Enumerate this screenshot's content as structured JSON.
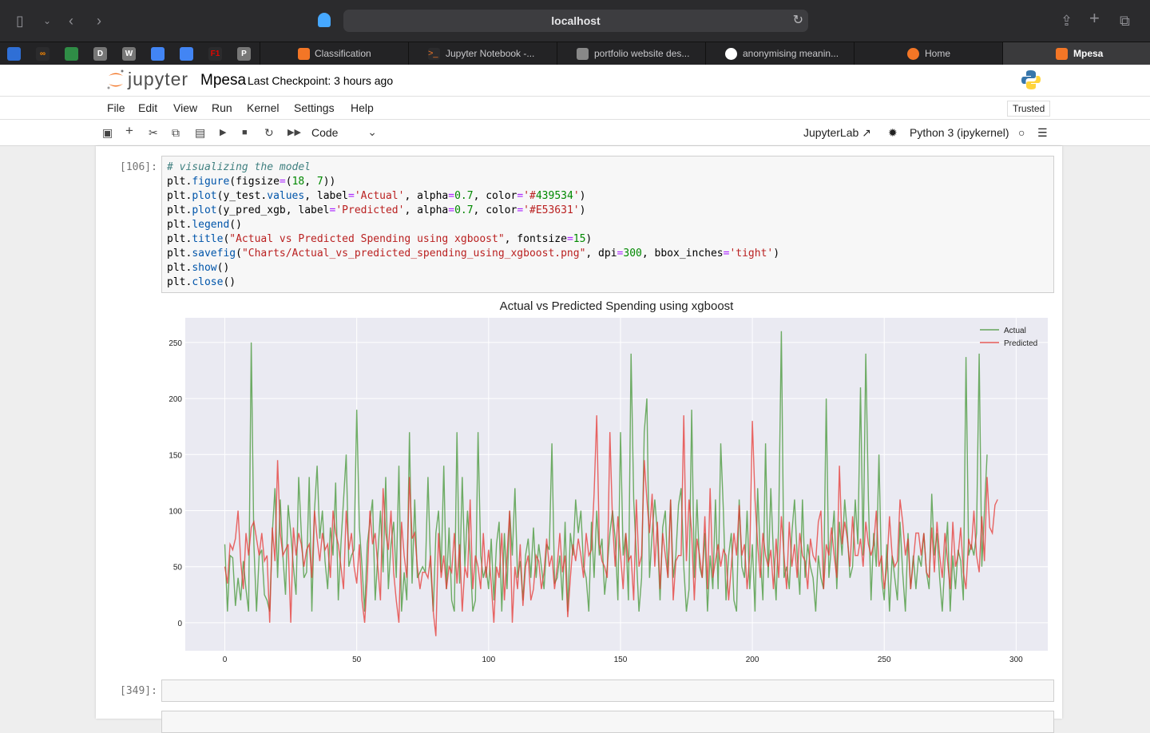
{
  "browser": {
    "url": "localhost",
    "tabs": [
      {
        "label": "Classification"
      },
      {
        "label": "Jupyter Notebook -..."
      },
      {
        "label": "portfolio website des..."
      },
      {
        "label": "anonymising meanin..."
      },
      {
        "label": "Home"
      },
      {
        "label": "Mpesa"
      }
    ],
    "pinned": [
      "D",
      "W",
      "P"
    ]
  },
  "jupyter": {
    "logo_text": "jupyter",
    "notebook_name": "Mpesa",
    "checkpoint": "Last Checkpoint: 3 hours ago",
    "menu": [
      "File",
      "Edit",
      "View",
      "Run",
      "Kernel",
      "Settings",
      "Help"
    ],
    "trusted": "Trusted",
    "cell_type": "Code",
    "jupyterlab_label": "JupyterLab",
    "kernel": "Python 3 (ipykernel)"
  },
  "cells": {
    "c1_prompt": "[106]:",
    "c2_prompt": "[349]:",
    "code_lines": [
      "# visualizing the model",
      "plt.figure(figsize=(18, 7))",
      "plt.plot(y_test.values, label='Actual', alpha=0.7, color='#439534')",
      "plt.plot(y_pred_xgb, label='Predicted', alpha=0.7, color='#E53631')",
      "plt.legend()",
      "plt.title(\"Actual vs Predicted Spending using xgboost\", fontsize=15)",
      "plt.savefig(\"Charts/Actual_vs_predicted_spending_using_xgboost.png\", dpi=300, bbox_inches='tight')",
      "plt.show()",
      "plt.close()"
    ]
  },
  "chart_data": {
    "type": "line",
    "title": "Actual vs Predicted Spending using xgboost",
    "xlim": [
      -15,
      312
    ],
    "ylim": [
      -25,
      272
    ],
    "xticks": [
      0,
      50,
      100,
      150,
      200,
      250,
      300
    ],
    "yticks": [
      0,
      50,
      100,
      150,
      200,
      250
    ],
    "grid": true,
    "legend_position": "top-right",
    "series": [
      {
        "name": "Actual",
        "color": "#439534",
        "values": [
          70,
          10,
          60,
          58,
          15,
          40,
          20,
          55,
          30,
          10,
          250,
          70,
          10,
          60,
          65,
          25,
          20,
          10,
          80,
          120,
          40,
          110,
          60,
          25,
          105,
          80,
          50,
          25,
          130,
          80,
          40,
          45,
          130,
          10,
          100,
          140,
          75,
          100,
          55,
          30,
          85,
          60,
          125,
          20,
          70,
          110,
          150,
          50,
          60,
          65,
          190,
          85,
          50,
          10,
          70,
          90,
          110,
          20,
          60,
          100,
          45,
          130,
          30,
          70,
          90,
          40,
          140,
          10,
          45,
          20,
          170,
          35,
          110,
          40,
          45,
          50,
          45,
          130,
          50,
          10,
          80,
          100,
          45,
          140,
          30,
          85,
          20,
          10,
          170,
          35,
          130,
          50,
          100,
          60,
          10,
          20,
          170,
          60,
          40,
          50,
          30,
          75,
          20,
          70,
          90,
          10,
          80,
          30,
          100,
          60,
          120,
          40,
          55,
          20,
          60,
          75,
          40,
          85,
          40,
          70,
          50,
          30,
          70,
          65,
          160,
          35,
          40,
          60,
          20,
          90,
          10,
          80,
          60,
          110,
          80,
          100,
          50,
          40,
          10,
          90,
          40,
          100,
          60,
          75,
          25,
          50,
          80,
          100,
          75,
          20,
          170,
          60,
          80,
          20,
          240,
          110,
          60,
          10,
          40,
          170,
          200,
          40,
          80,
          110,
          80,
          20,
          85,
          100,
          40,
          110,
          40,
          60,
          105,
          120,
          50,
          10,
          30,
          190,
          40,
          110,
          50,
          40,
          80,
          10,
          60,
          30,
          110,
          30,
          160,
          100,
          20,
          60,
          80,
          20,
          10,
          110,
          50,
          40,
          100,
          30,
          70,
          10,
          120,
          60,
          20,
          160,
          40,
          120,
          60,
          20,
          90,
          260,
          40,
          50,
          30,
          80,
          110,
          60,
          25,
          110,
          40,
          70,
          50,
          40,
          10,
          60,
          40,
          30,
          200,
          40,
          70,
          100,
          30,
          90,
          60,
          110,
          80,
          40,
          50,
          110,
          70,
          210,
          60,
          240,
          110,
          20,
          80,
          50,
          150,
          40,
          20,
          70,
          10,
          60,
          40,
          20,
          90,
          45,
          10,
          80,
          30,
          60,
          30,
          60,
          50,
          80,
          45,
          30,
          115,
          60,
          80,
          40,
          10,
          55,
          90,
          10,
          60,
          30,
          65,
          55,
          20,
          237,
          60,
          70,
          60,
          80,
          240,
          50,
          100,
          150
        ]
      },
      {
        "name": "Predicted",
        "color": "#E53631",
        "values": [
          50,
          35,
          70,
          65,
          75,
          100,
          55,
          30,
          80,
          60,
          85,
          90,
          75,
          60,
          80,
          55,
          60,
          0,
          85,
          55,
          145,
          80,
          60,
          65,
          70,
          0,
          85,
          60,
          80,
          70,
          50,
          65,
          70,
          40,
          100,
          75,
          55,
          80,
          65,
          70,
          40,
          100,
          80,
          70,
          50,
          30,
          100,
          65,
          80,
          50,
          35,
          70,
          20,
          0,
          40,
          100,
          70,
          80,
          50,
          20,
          120,
          80,
          65,
          100,
          45,
          20,
          0,
          90,
          60,
          40,
          130,
          75,
          80,
          50,
          30,
          45,
          45,
          40,
          60,
          10,
          -12,
          80,
          40,
          60,
          30,
          50,
          45,
          80,
          35,
          70,
          10,
          50,
          40,
          110,
          30,
          60,
          50,
          30,
          80,
          40,
          65,
          35,
          0,
          50,
          40,
          80,
          20,
          60,
          100,
          0,
          50,
          30,
          70,
          15,
          50,
          60,
          20,
          30,
          60,
          55,
          30,
          45,
          75,
          50,
          60,
          30,
          50,
          80,
          45,
          60,
          5,
          40,
          70,
          55,
          75,
          60,
          40,
          80,
          60,
          65,
          115,
          185,
          70,
          55,
          50,
          40,
          170,
          90,
          50,
          95,
          60,
          30,
          80,
          55,
          60,
          20,
          110,
          50,
          60,
          145,
          110,
          80,
          115,
          50,
          90,
          30,
          80,
          60,
          40,
          110,
          20,
          55,
          60,
          60,
          185,
          55,
          110,
          80,
          20,
          75,
          60,
          40,
          95,
          30,
          120,
          40,
          55,
          70,
          50,
          65,
          60,
          20,
          50,
          80,
          60,
          105,
          60,
          70,
          30,
          60,
          180,
          110,
          70,
          40,
          80,
          60,
          50,
          65,
          30,
          75,
          40,
          95,
          60,
          30,
          90,
          50,
          70,
          40,
          80,
          60,
          55,
          30,
          75,
          60,
          55,
          90,
          100,
          30,
          70,
          60,
          85,
          60,
          40,
          140,
          70,
          90,
          75,
          50,
          95,
          60,
          60,
          75,
          50,
          90,
          70,
          60,
          70,
          100,
          50,
          60,
          30,
          50,
          95,
          60,
          50,
          55,
          110,
          90,
          60,
          75,
          30,
          55,
          80,
          80,
          60,
          80,
          45,
          40,
          85,
          45,
          90,
          60,
          40,
          80,
          55,
          30,
          90,
          50,
          60,
          85,
          45,
          30,
          75,
          65,
          100,
          60,
          45,
          95,
          55,
          130,
          85,
          80,
          105,
          110
        ]
      }
    ]
  }
}
